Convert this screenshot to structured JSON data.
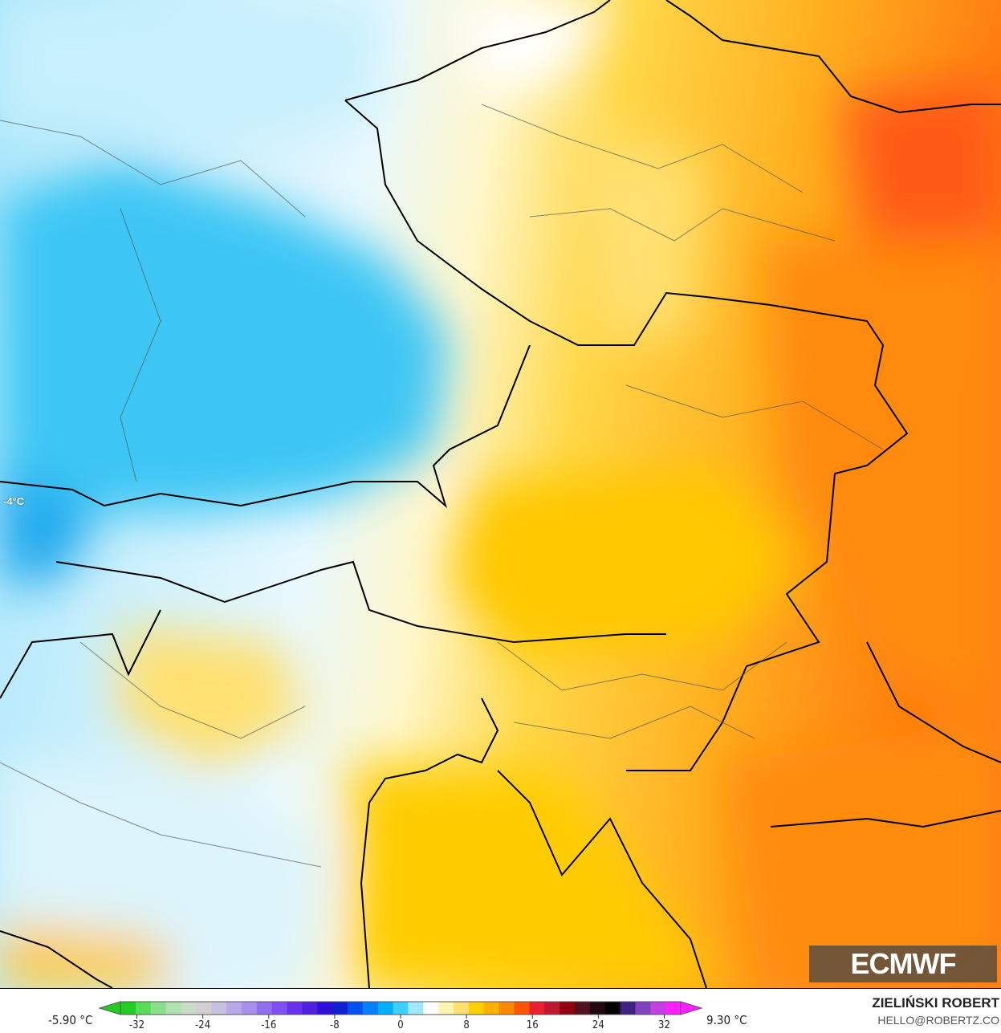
{
  "map": {
    "isotherm_label": "-4°C",
    "logo_text": "ECMWF"
  },
  "legend": {
    "min_label": "-5.90 °C",
    "max_label": "9.30 °C",
    "ticks": [
      "-32",
      "-24",
      "-16",
      "-8",
      "0",
      "8",
      "16",
      "24",
      "32"
    ],
    "tick_values": [
      -32,
      -24,
      -16,
      -8,
      0,
      8,
      16,
      24,
      32
    ],
    "range": [
      -34,
      34
    ],
    "colors": [
      "#22cc22",
      "#55dd55",
      "#88e088",
      "#b0e0b0",
      "#c8dcc8",
      "#d0d0d0",
      "#c8c0e0",
      "#b8a8e8",
      "#a890f0",
      "#9070f0",
      "#8050f0",
      "#6a30f0",
      "#5020e0",
      "#3010d8",
      "#1020d0",
      "#0050f0",
      "#0080ff",
      "#00b0ff",
      "#40d0ff",
      "#a0e8ff",
      "#ffffff",
      "#fff4b0",
      "#ffe070",
      "#ffd000",
      "#ffb000",
      "#ff8800",
      "#ff5500",
      "#e82030",
      "#c01830",
      "#900010",
      "#501020",
      "#200810",
      "#000000",
      "#402080",
      "#8040c0",
      "#c040e0",
      "#ff20ff"
    ]
  },
  "credit": {
    "name": "ZIELIŃSKI ROBERT",
    "email": "HELLO@ROBERTZ.CO"
  }
}
